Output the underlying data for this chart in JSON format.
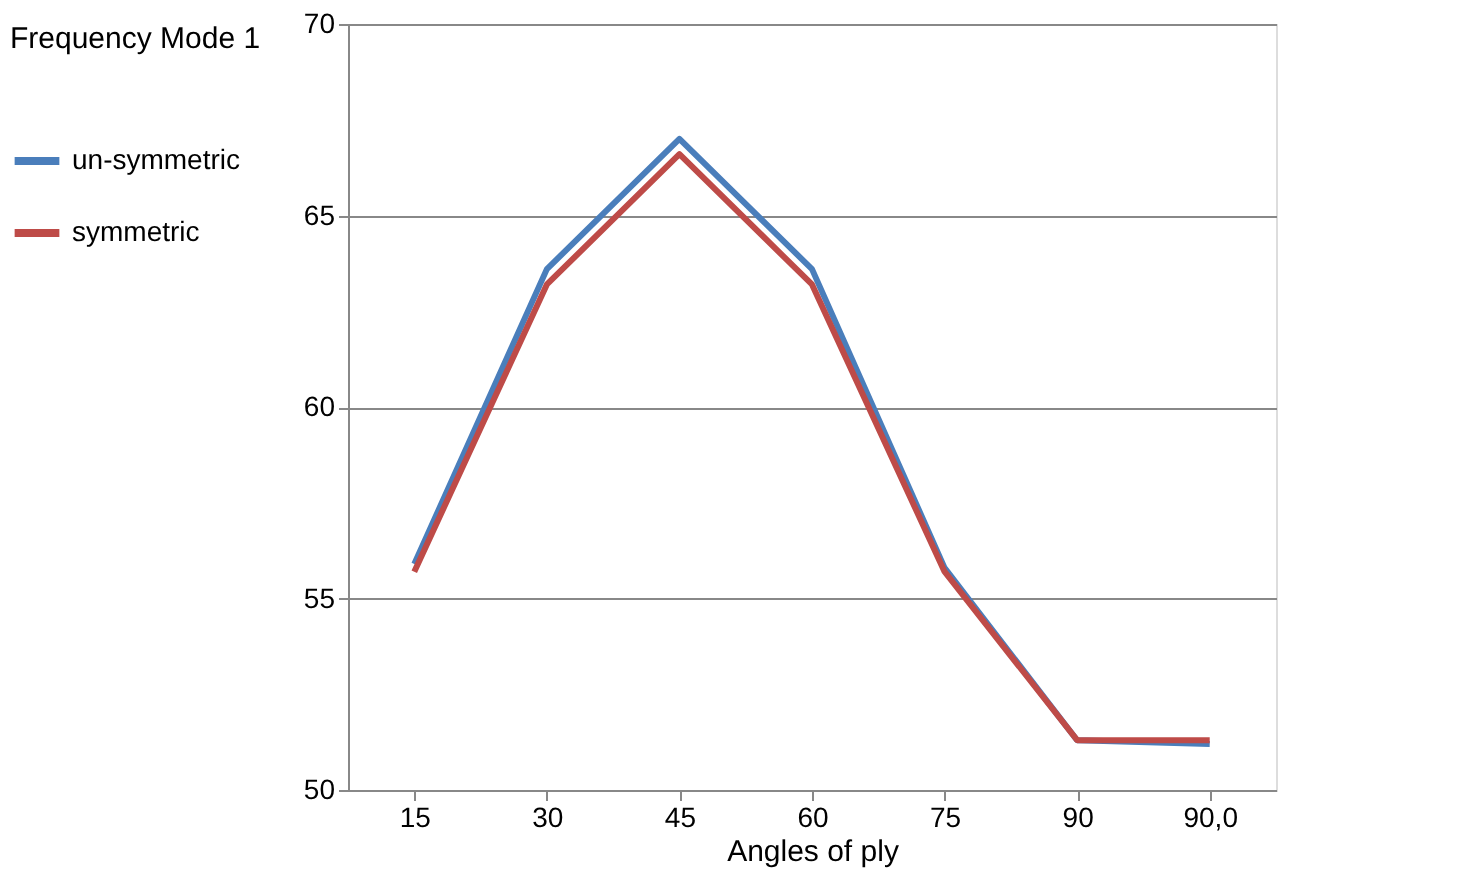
{
  "chart_data": {
    "type": "line",
    "xlabel": "Angles of ply",
    "legend_title": "Frequency Mode 1",
    "categories": [
      "15",
      "30",
      "45",
      "60",
      "75",
      "90",
      "90,0"
    ],
    "series": [
      {
        "name": "un-symmetric",
        "color": "#4a7ebb",
        "values": [
          55.9,
          63.6,
          67.0,
          63.6,
          55.8,
          51.3,
          51.2
        ]
      },
      {
        "name": "symmetric",
        "color": "#be4b48",
        "values": [
          55.7,
          63.2,
          66.6,
          63.2,
          55.7,
          51.3,
          51.3
        ]
      }
    ],
    "ylim": [
      50,
      70
    ],
    "yticks": [
      50,
      55,
      60,
      65,
      70
    ],
    "grid": "y",
    "legend": "left",
    "marker": "none",
    "line_style": "solid"
  }
}
